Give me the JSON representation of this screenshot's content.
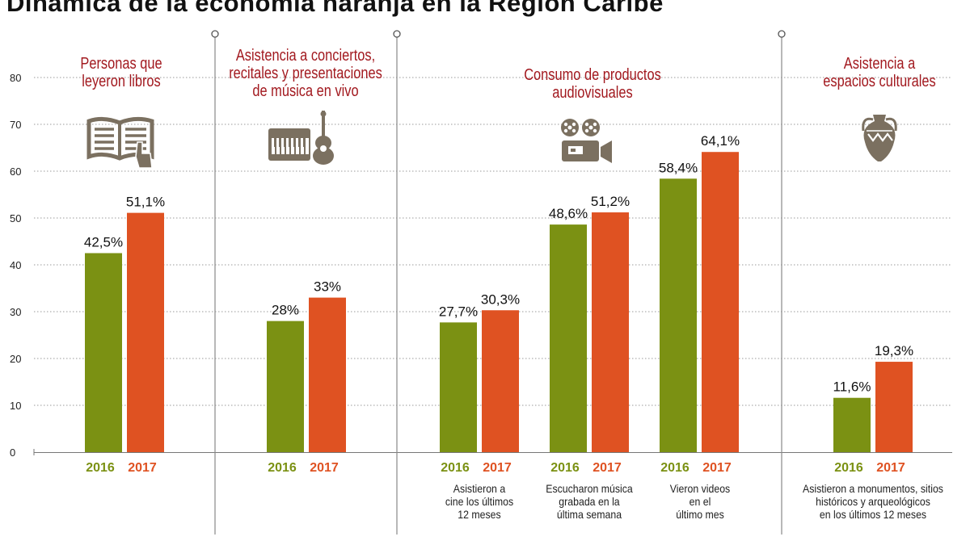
{
  "title": "Dinámica de la economía naranja en la Región Caribe",
  "colors": {
    "y2016": "#7b9113",
    "y2017": "#df5222",
    "heading": "#a2191f",
    "icon": "#7b7060"
  },
  "icons": [
    "book-icon",
    "piano-guitar-icon",
    "film-projector-icon",
    "amphora-icon"
  ],
  "groups": [
    {
      "title_lines": [
        "Personas que",
        "leyeron libros"
      ]
    },
    {
      "title_lines": [
        "Asistencia a conciertos,",
        "recitales y presentaciones",
        "de música en vivo"
      ]
    },
    {
      "title_lines": [
        "Consumo de productos audiovisuales"
      ]
    },
    {
      "title_lines": [
        "Asistencia a",
        "espacios culturales"
      ]
    }
  ],
  "chart_data": {
    "type": "bar",
    "title": "Dinámica de la economía naranja en la Región Caribe",
    "ylim": [
      0,
      80
    ],
    "yticks": [
      0,
      10,
      20,
      30,
      40,
      50,
      60,
      70,
      80
    ],
    "grid": true,
    "series": [
      {
        "name": "2016",
        "values": [
          42.5,
          28,
          27.7,
          48.6,
          58.4,
          11.6
        ]
      },
      {
        "name": "2017",
        "values": [
          51.1,
          33,
          30.3,
          51.2,
          64.1,
          19.3
        ]
      }
    ],
    "categories": [
      {
        "group": 0,
        "labels": [
          "42,5%",
          "51,1%"
        ],
        "desc": []
      },
      {
        "group": 1,
        "labels": [
          "28%",
          "33%"
        ],
        "desc": []
      },
      {
        "group": 2,
        "labels": [
          "27,7%",
          "30,3%"
        ],
        "desc": [
          "Asistieron a",
          "cine los últimos",
          "12 meses"
        ]
      },
      {
        "group": 2,
        "labels": [
          "48,6%",
          "51,2%"
        ],
        "desc": [
          "Escucharon música",
          "grabada en la",
          "última semana"
        ]
      },
      {
        "group": 2,
        "labels": [
          "58,4%",
          "64,1%"
        ],
        "desc": [
          "Vieron videos",
          "en el",
          "último mes"
        ]
      },
      {
        "group": 3,
        "labels": [
          "11,6%",
          "19,3%"
        ],
        "desc": [
          "Asistieron a monumentos, sitios",
          "históricos y arqueológicos",
          "en los últimos 12 meses"
        ]
      }
    ]
  }
}
